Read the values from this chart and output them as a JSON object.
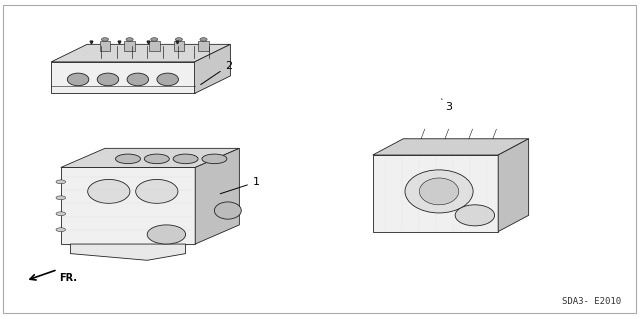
{
  "bg_color": "#ffffff",
  "diagram_code": "SDA3- E2010",
  "dark": "#222222",
  "lw": 0.6
}
